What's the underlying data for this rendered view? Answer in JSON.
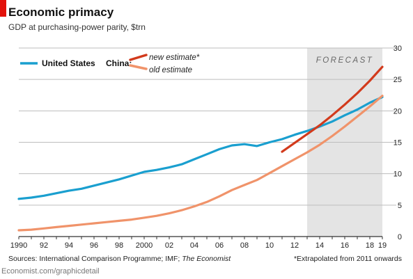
{
  "header": {
    "title": "Economic primacy",
    "subtitle": "GDP at purchasing-power parity, $trn"
  },
  "footer": {
    "sources_prefix": "Sources: International Comparison Programme; IMF; ",
    "sources_italic": "The Economist",
    "note": "*Extrapolated from 2011 onwards",
    "brand": "Economist.com/graphicdetail"
  },
  "colors": {
    "accent": "#e3120b",
    "us": "#1a9fcf",
    "china_new": "#d23a1c",
    "china_old": "#f0936a",
    "forecast_band": "#e4e4e4",
    "grid": "#bdbdbd"
  },
  "chart_data": {
    "type": "line",
    "title": "Economic primacy",
    "subtitle": "GDP at purchasing-power parity, $trn",
    "xlabel": "",
    "ylabel": "",
    "xlim": [
      1990,
      2019
    ],
    "ylim": [
      0,
      30
    ],
    "y_ticks": [
      0,
      5,
      10,
      15,
      20,
      25,
      30
    ],
    "x_tick_labels": [
      {
        "x": 1990,
        "label": "1990"
      },
      {
        "x": 1992,
        "label": "92"
      },
      {
        "x": 1994,
        "label": "94"
      },
      {
        "x": 1996,
        "label": "96"
      },
      {
        "x": 1998,
        "label": "98"
      },
      {
        "x": 2000,
        "label": "2000"
      },
      {
        "x": 2002,
        "label": "02"
      },
      {
        "x": 2004,
        "label": "04"
      },
      {
        "x": 2006,
        "label": "06"
      },
      {
        "x": 2008,
        "label": "08"
      },
      {
        "x": 2010,
        "label": "10"
      },
      {
        "x": 2012,
        "label": "12"
      },
      {
        "x": 2014,
        "label": "14"
      },
      {
        "x": 2016,
        "label": "16"
      },
      {
        "x": 2018,
        "label": "18"
      },
      {
        "x": 2019,
        "label": "19"
      }
    ],
    "grid": true,
    "y_axis_side": "right",
    "forecast": {
      "from": 2013,
      "to": 2019,
      "label": "FORECAST"
    },
    "legend": {
      "placement": "top-left",
      "china_label": "China:"
    },
    "series": [
      {
        "name": "United States",
        "color": "#1a9fcf",
        "x": [
          1990,
          1991,
          1992,
          1993,
          1994,
          1995,
          1996,
          1997,
          1998,
          1999,
          2000,
          2001,
          2002,
          2003,
          2004,
          2005,
          2006,
          2007,
          2008,
          2009,
          2010,
          2011,
          2012,
          2013,
          2014,
          2015,
          2016,
          2017,
          2018,
          2019
        ],
        "y": [
          6.0,
          6.2,
          6.5,
          6.9,
          7.3,
          7.6,
          8.1,
          8.6,
          9.1,
          9.7,
          10.3,
          10.6,
          11.0,
          11.5,
          12.3,
          13.1,
          13.9,
          14.5,
          14.7,
          14.4,
          15.0,
          15.5,
          16.2,
          16.8,
          17.5,
          18.3,
          19.3,
          20.2,
          21.3,
          22.2
        ]
      },
      {
        "name": "new estimate*",
        "color": "#d23a1c",
        "x": [
          2011,
          2012,
          2013,
          2014,
          2015,
          2016,
          2017,
          2018,
          2019
        ],
        "y": [
          13.5,
          14.9,
          16.3,
          17.7,
          19.3,
          21.0,
          22.8,
          24.8,
          27.0
        ]
      },
      {
        "name": "old estimate",
        "color": "#f0936a",
        "x": [
          1990,
          1991,
          1992,
          1993,
          1994,
          1995,
          1996,
          1997,
          1998,
          1999,
          2000,
          2001,
          2002,
          2003,
          2004,
          2005,
          2006,
          2007,
          2008,
          2009,
          2010,
          2011,
          2012,
          2013,
          2014,
          2015,
          2016,
          2017,
          2018,
          2019
        ],
        "y": [
          1.0,
          1.1,
          1.3,
          1.5,
          1.7,
          1.9,
          2.1,
          2.3,
          2.5,
          2.7,
          3.0,
          3.3,
          3.7,
          4.2,
          4.8,
          5.5,
          6.4,
          7.4,
          8.2,
          9.0,
          10.1,
          11.2,
          12.3,
          13.4,
          14.6,
          16.0,
          17.5,
          19.1,
          20.7,
          22.4
        ]
      }
    ]
  }
}
